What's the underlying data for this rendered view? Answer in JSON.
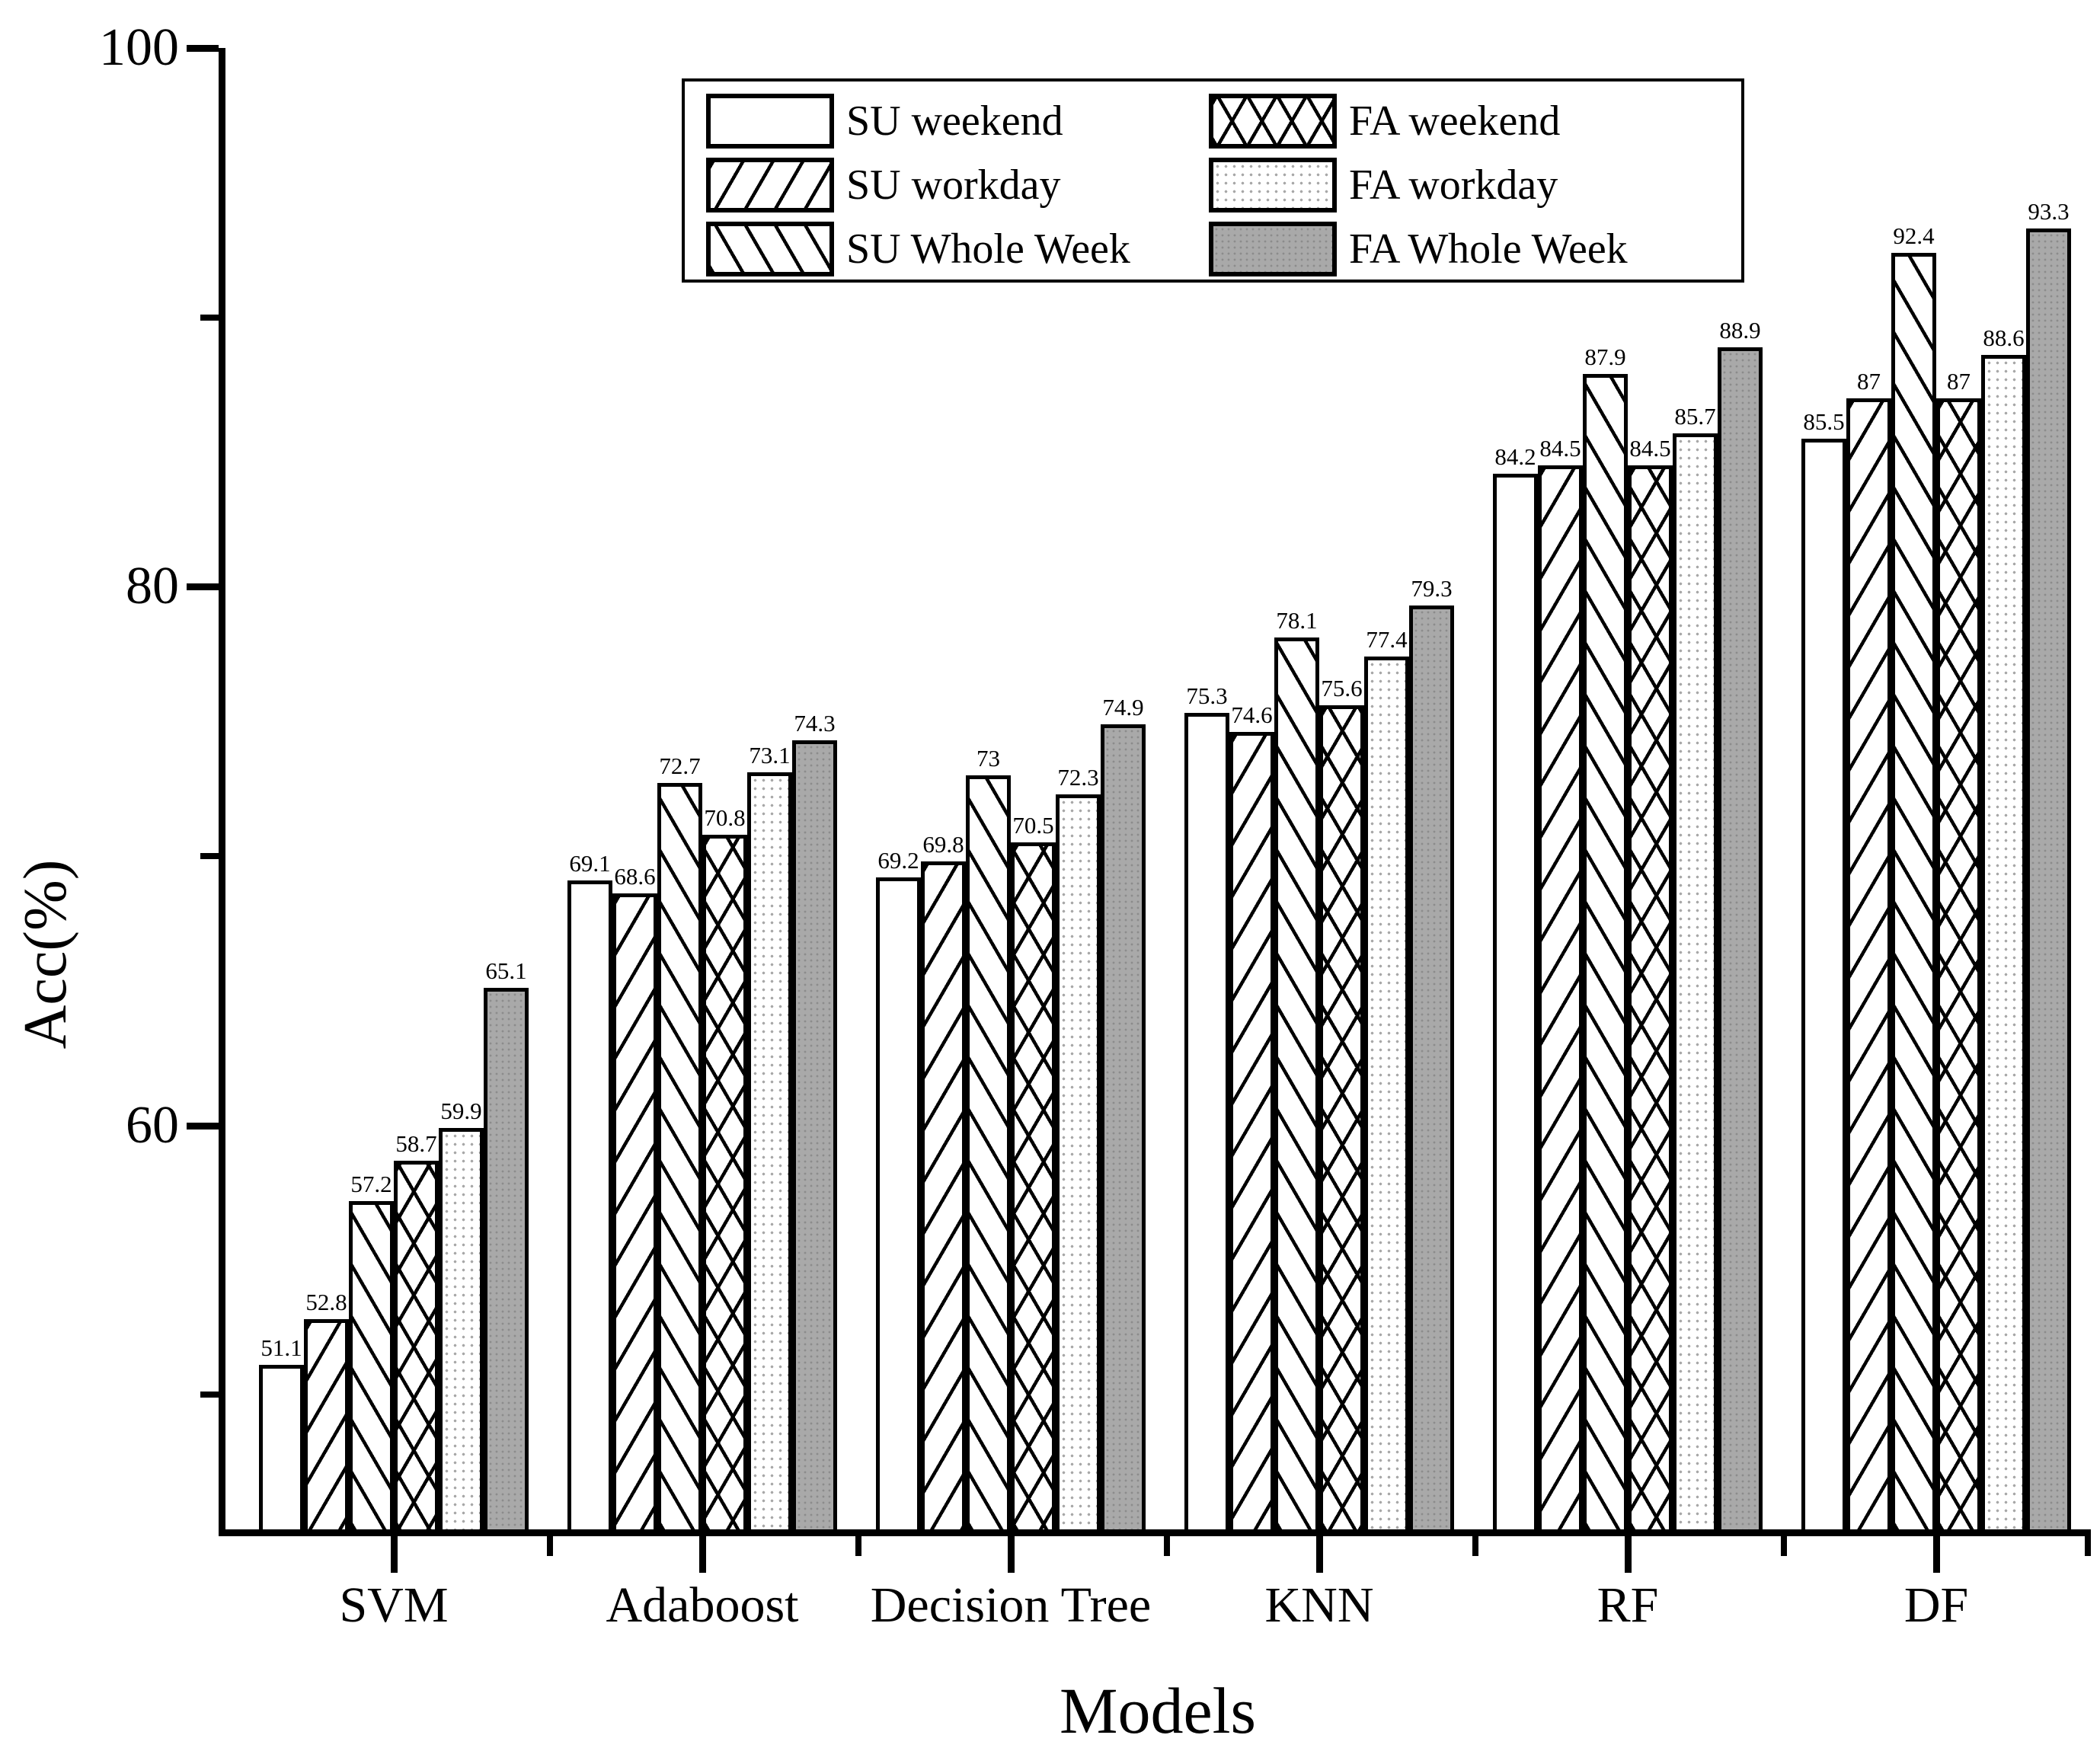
{
  "chart_data": {
    "type": "bar",
    "title": "",
    "xlabel": "Models",
    "ylabel": "Acc(%)",
    "ylim": [
      45,
      100
    ],
    "yticks_major": [
      100,
      80,
      60
    ],
    "yticks_minor": [
      90,
      70,
      50
    ],
    "grid": false,
    "legend_position": "top-center",
    "categories": [
      "SVM",
      "Adaboost",
      "Decision Tree",
      "KNN",
      "RF",
      "DF"
    ],
    "series": [
      {
        "name": "SU weekend",
        "pattern": "plain",
        "values": [
          51.1,
          69.1,
          69.2,
          75.3,
          84.2,
          85.5
        ]
      },
      {
        "name": "SU workday",
        "pattern": "fwd",
        "values": [
          52.8,
          68.6,
          69.8,
          74.6,
          84.5,
          87
        ]
      },
      {
        "name": "SU Whole Week",
        "pattern": "back",
        "values": [
          57.2,
          72.7,
          73,
          78.1,
          87.9,
          92.4
        ]
      },
      {
        "name": "FA weekend",
        "pattern": "cross",
        "values": [
          58.7,
          70.8,
          70.5,
          75.6,
          84.5,
          87
        ]
      },
      {
        "name": "FA workday",
        "pattern": "dots",
        "values": [
          59.9,
          73.1,
          72.3,
          77.4,
          85.7,
          88.6
        ]
      },
      {
        "name": "FA Whole Week",
        "pattern": "gray",
        "values": [
          65.1,
          74.3,
          74.9,
          79.3,
          88.9,
          93.3
        ]
      }
    ],
    "colors": {
      "line": "#000000",
      "gray_fill": "#a9a9a9",
      "label_text": "#000000",
      "background": "#ffffff"
    }
  }
}
